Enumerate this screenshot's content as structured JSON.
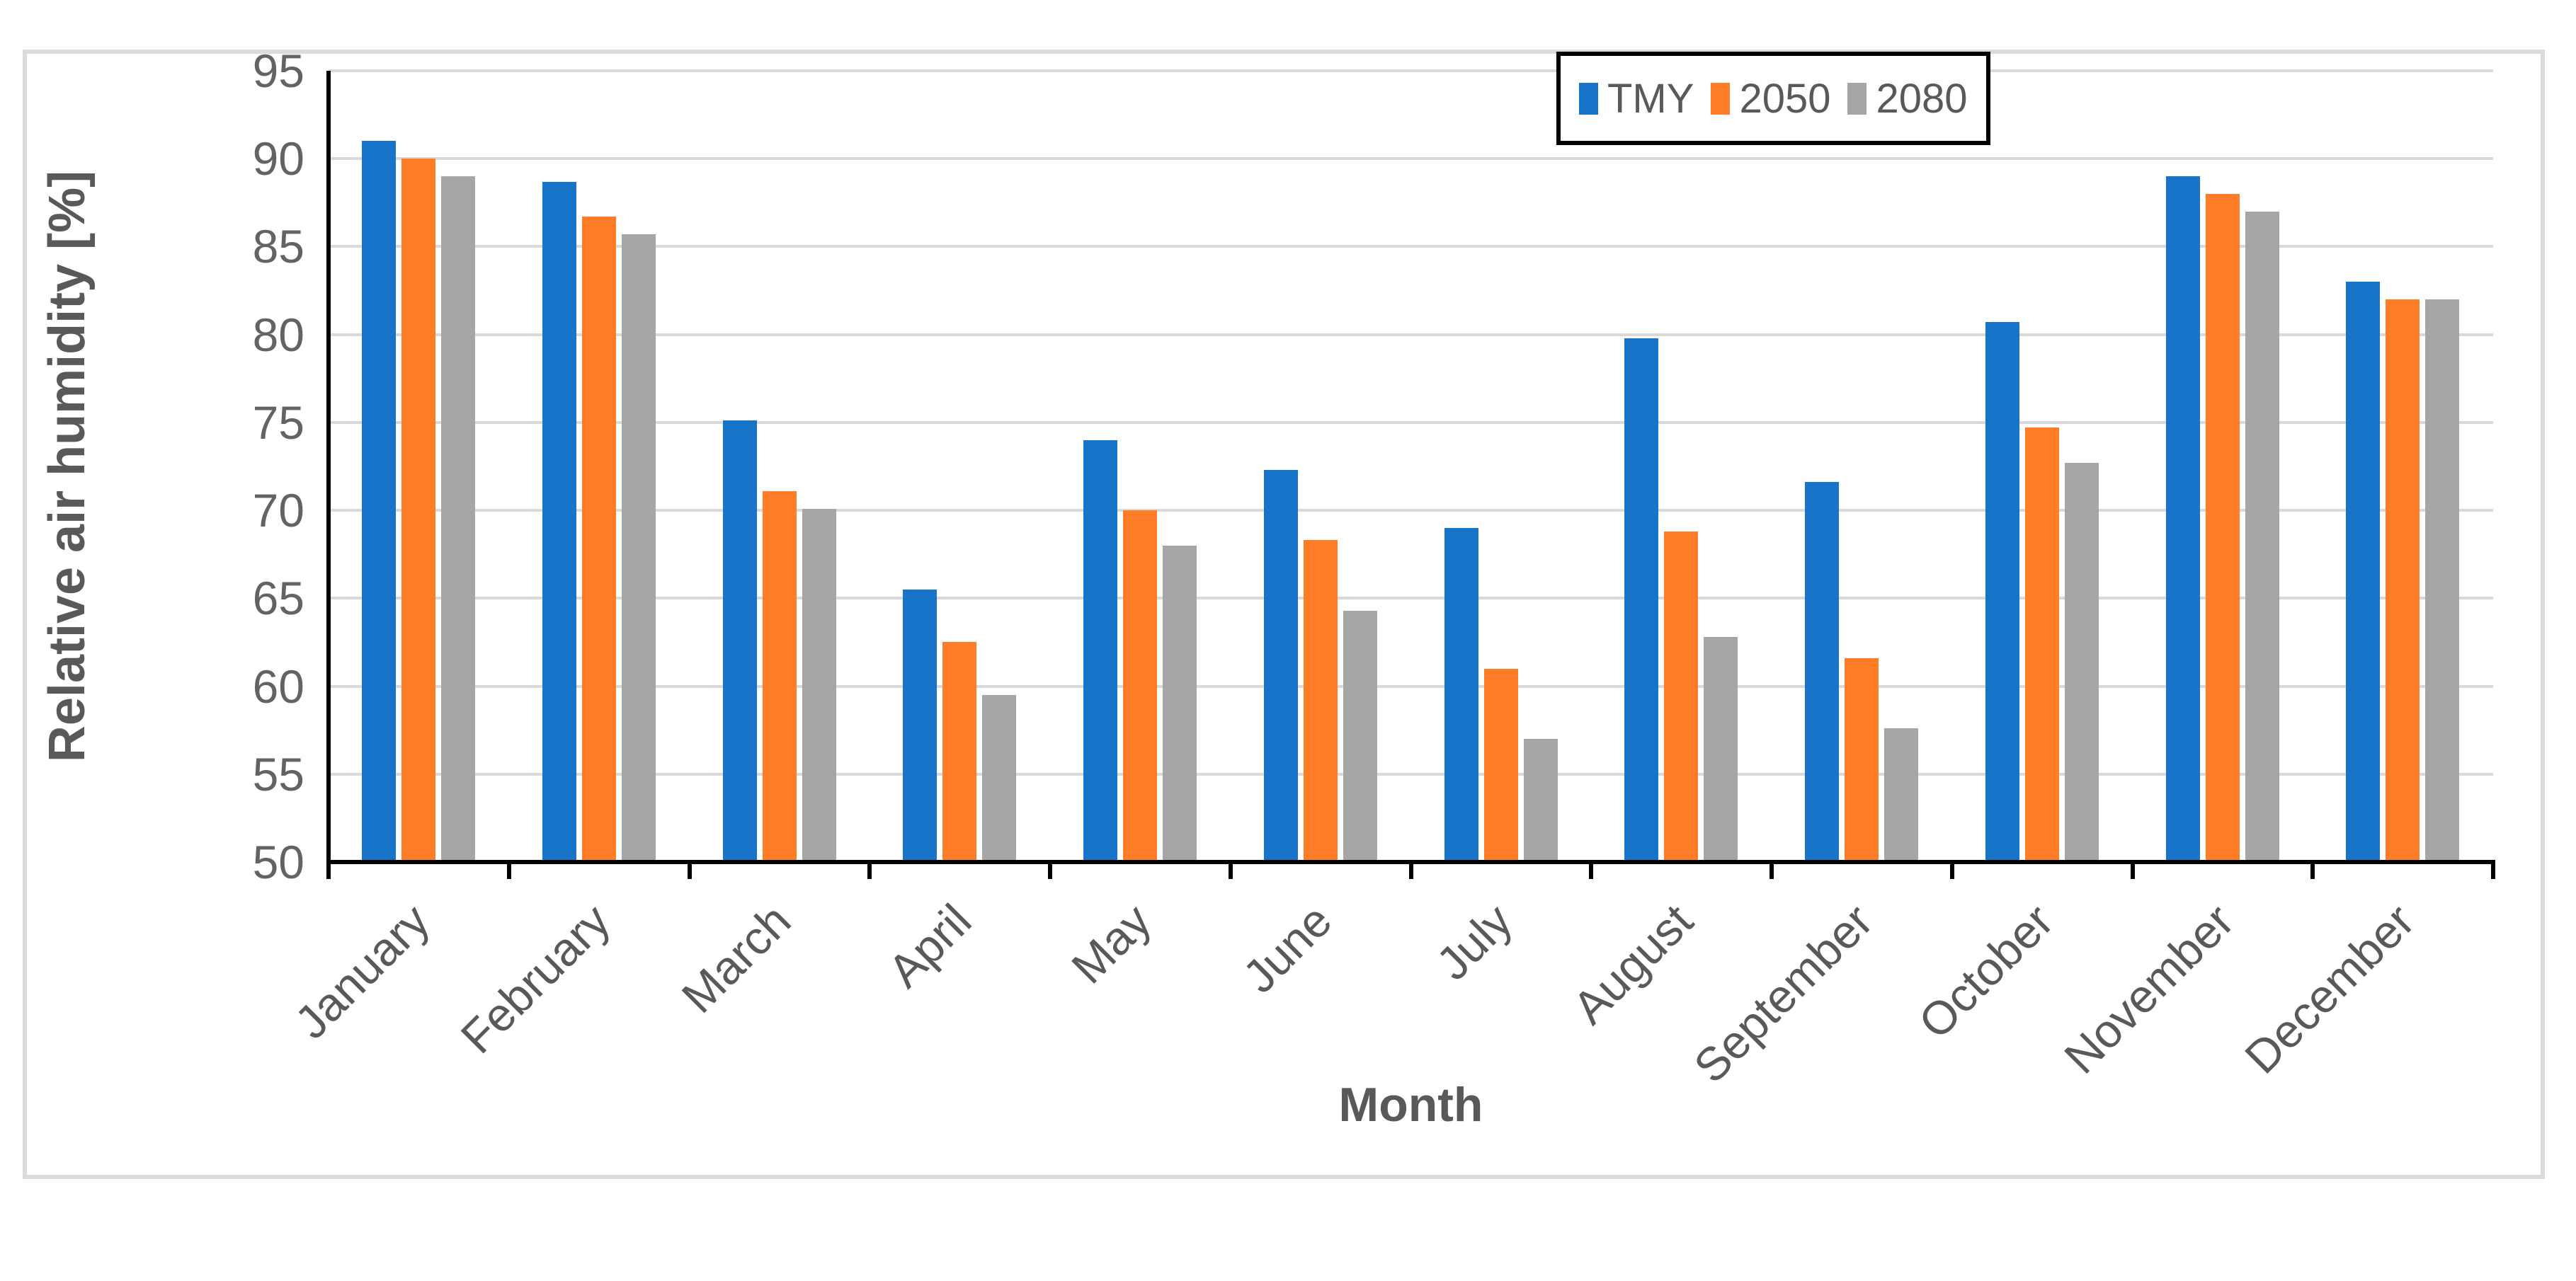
{
  "window": {
    "background_color": "#FFFFFF",
    "border_color": "#DBDBDB"
  },
  "chart_data": {
    "type": "bar",
    "title": "",
    "xlabel": "Month",
    "ylabel": "Relative air humidity [%]",
    "ylim": [
      50,
      95
    ],
    "ytick_step": 5,
    "y_tick_labels": [
      "95",
      "90",
      "85",
      "80",
      "75",
      "70",
      "65",
      "60",
      "55",
      "50"
    ],
    "grid": true,
    "gridline_color": "#D9D9D9",
    "axis_line_color": "#000000",
    "tick_label_color": "#636363",
    "axis_title_color": "#595959",
    "legend_position": "top-right",
    "legend_border_color": "#000000",
    "categories": [
      "January",
      "February",
      "March",
      "April",
      "May",
      "June",
      "July",
      "August",
      "September",
      "October",
      "November",
      "December"
    ],
    "series": [
      {
        "name": "TMY",
        "color": "#1874C8",
        "values": [
          91.0,
          88.7,
          75.1,
          65.5,
          74.0,
          72.3,
          69.0,
          79.8,
          71.6,
          80.7,
          89.0,
          83.0
        ]
      },
      {
        "name": "2050",
        "color": "#FF7D27",
        "values": [
          90.0,
          86.7,
          71.1,
          62.5,
          70.0,
          68.3,
          61.0,
          68.8,
          61.6,
          74.7,
          88.0,
          82.0
        ]
      },
      {
        "name": "2080",
        "color": "#A6A6A6",
        "values": [
          89.0,
          85.7,
          70.1,
          59.5,
          68.0,
          64.3,
          57.0,
          62.8,
          57.6,
          72.7,
          87.0,
          82.0
        ]
      }
    ]
  }
}
